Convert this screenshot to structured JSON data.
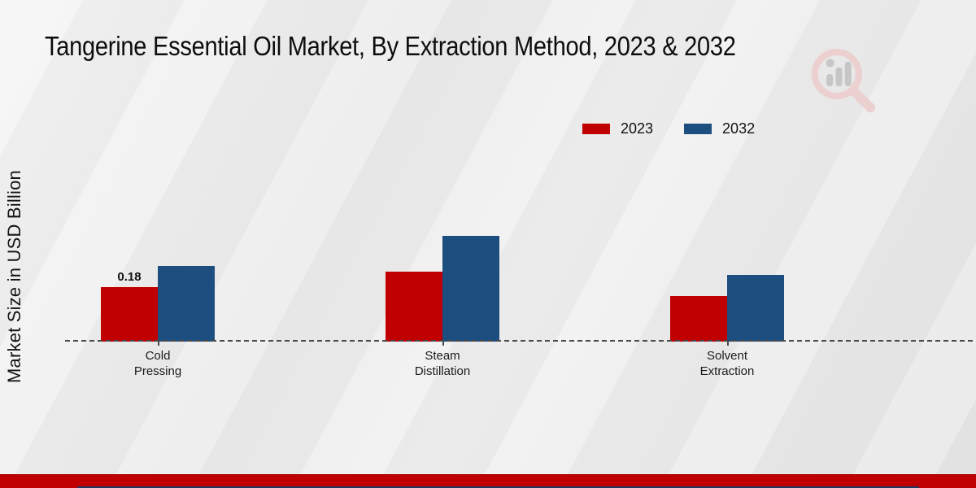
{
  "chart_data": {
    "type": "bar",
    "title": "Tangerine Essential Oil Market, By Extraction Method, 2023 & 2032",
    "ylabel": "Market Size in USD Billion",
    "xlabel": "",
    "categories": [
      "Cold Pressing",
      "Steam Distillation",
      "Solvent Extraction"
    ],
    "category_label_lines": [
      [
        "Cold",
        "Pressing"
      ],
      [
        "Steam",
        "Distillation"
      ],
      [
        "Solvent",
        "Extraction"
      ]
    ],
    "series": [
      {
        "name": "2023",
        "color": "#c00000",
        "values": [
          0.18,
          0.23,
          0.15
        ]
      },
      {
        "name": "2032",
        "color": "#1c4e80",
        "values": [
          0.25,
          0.35,
          0.22
        ]
      }
    ],
    "annotations": [
      {
        "series": "2023",
        "category": "Cold Pressing",
        "text": "0.18"
      }
    ],
    "ylim": [
      0,
      0.4
    ],
    "grid": false,
    "legend_position": "top-right",
    "baseline_style": "dashed"
  },
  "colors": {
    "bar_2023": "#c00000",
    "bar_2032": "#1c4e80",
    "footer_band": "#c00000",
    "footer_strip": "#203864",
    "watermark_pink": "#eccfcf",
    "watermark_gray": "#c6c6c6"
  },
  "watermark": {
    "name": "market-research-magnifier-logo"
  }
}
